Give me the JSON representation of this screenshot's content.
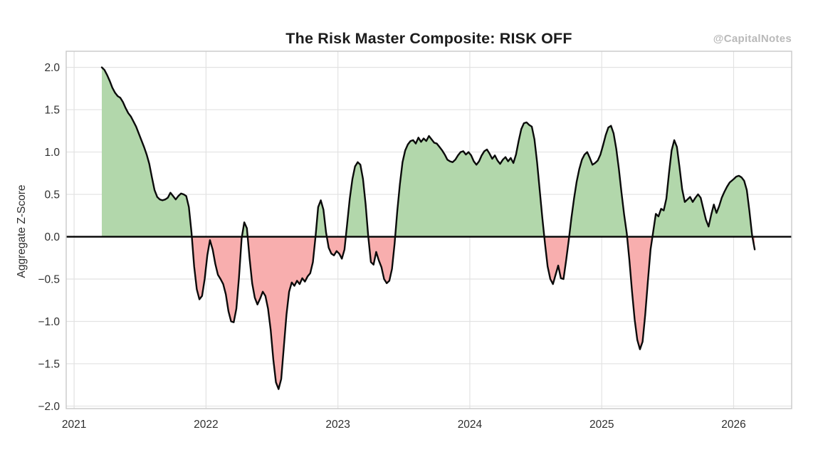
{
  "header": {
    "watermark": "@CapitalNotes"
  },
  "chart_data": {
    "type": "area",
    "title": "The Risk Master Composite: RISK OFF",
    "xlabel": "",
    "ylabel": "Aggregate Z-Score",
    "x_unit": "year",
    "xlim": [
      2020.94,
      2026.44
    ],
    "ylim": [
      -2.03,
      2.19
    ],
    "grid": true,
    "legend": null,
    "zero_line": true,
    "fill_rule": "green fill above zero, red fill below zero",
    "x_ticks": [
      {
        "v": 2021,
        "label": "2021"
      },
      {
        "v": 2022,
        "label": "2022"
      },
      {
        "v": 2023,
        "label": "2023"
      },
      {
        "v": 2024,
        "label": "2024"
      },
      {
        "v": 2025,
        "label": "2025"
      },
      {
        "v": 2026,
        "label": "2026"
      }
    ],
    "y_ticks": [
      {
        "v": 2.0,
        "label": "2.0"
      },
      {
        "v": 1.5,
        "label": "1.5"
      },
      {
        "v": 1.0,
        "label": "1.0"
      },
      {
        "v": 0.5,
        "label": "0.5"
      },
      {
        "v": 0.0,
        "label": "0.0"
      },
      {
        "v": -0.5,
        "label": "−0.5"
      },
      {
        "v": -1.0,
        "label": "−1.0"
      },
      {
        "v": -1.5,
        "label": "−1.5"
      },
      {
        "v": -2.0,
        "label": "−2.0"
      }
    ],
    "colors": {
      "positive_fill": "#b2d7ab",
      "negative_fill": "#f8aeae",
      "line": "#0a0a0a",
      "zero_line": "#000000",
      "grid": "#e2e2e2",
      "border": "#c9c9c9",
      "tick_text": "#2e2e2e",
      "title_text": "#1c1c1c",
      "watermark_text": "#b9b9b9"
    },
    "series": [
      {
        "name": "aggregate_z_score",
        "points": [
          [
            2021.21,
            2.0
          ],
          [
            2021.23,
            1.97
          ],
          [
            2021.25,
            1.91
          ],
          [
            2021.27,
            1.84
          ],
          [
            2021.29,
            1.76
          ],
          [
            2021.31,
            1.7
          ],
          [
            2021.33,
            1.66
          ],
          [
            2021.35,
            1.64
          ],
          [
            2021.37,
            1.59
          ],
          [
            2021.39,
            1.52
          ],
          [
            2021.41,
            1.46
          ],
          [
            2021.43,
            1.42
          ],
          [
            2021.45,
            1.36
          ],
          [
            2021.47,
            1.3
          ],
          [
            2021.49,
            1.22
          ],
          [
            2021.51,
            1.14
          ],
          [
            2021.53,
            1.06
          ],
          [
            2021.55,
            0.97
          ],
          [
            2021.57,
            0.86
          ],
          [
            2021.59,
            0.7
          ],
          [
            2021.61,
            0.55
          ],
          [
            2021.63,
            0.47
          ],
          [
            2021.65,
            0.44
          ],
          [
            2021.67,
            0.43
          ],
          [
            2021.69,
            0.44
          ],
          [
            2021.71,
            0.46
          ],
          [
            2021.73,
            0.52
          ],
          [
            2021.75,
            0.48
          ],
          [
            2021.77,
            0.44
          ],
          [
            2021.79,
            0.48
          ],
          [
            2021.81,
            0.51
          ],
          [
            2021.83,
            0.5
          ],
          [
            2021.85,
            0.48
          ],
          [
            2021.87,
            0.35
          ],
          [
            2021.89,
            0.05
          ],
          [
            2021.91,
            -0.35
          ],
          [
            2021.93,
            -0.62
          ],
          [
            2021.95,
            -0.74
          ],
          [
            2021.97,
            -0.7
          ],
          [
            2021.99,
            -0.5
          ],
          [
            2022.01,
            -0.22
          ],
          [
            2022.03,
            -0.04
          ],
          [
            2022.05,
            -0.15
          ],
          [
            2022.07,
            -0.32
          ],
          [
            2022.09,
            -0.45
          ],
          [
            2022.11,
            -0.5
          ],
          [
            2022.13,
            -0.56
          ],
          [
            2022.15,
            -0.68
          ],
          [
            2022.17,
            -0.88
          ],
          [
            2022.19,
            -1.0
          ],
          [
            2022.21,
            -1.01
          ],
          [
            2022.23,
            -0.85
          ],
          [
            2022.25,
            -0.48
          ],
          [
            2022.27,
            -0.02
          ],
          [
            2022.29,
            0.17
          ],
          [
            2022.31,
            0.1
          ],
          [
            2022.33,
            -0.25
          ],
          [
            2022.35,
            -0.55
          ],
          [
            2022.37,
            -0.72
          ],
          [
            2022.39,
            -0.8
          ],
          [
            2022.41,
            -0.73
          ],
          [
            2022.43,
            -0.65
          ],
          [
            2022.45,
            -0.7
          ],
          [
            2022.47,
            -0.85
          ],
          [
            2022.49,
            -1.1
          ],
          [
            2022.51,
            -1.45
          ],
          [
            2022.53,
            -1.72
          ],
          [
            2022.55,
            -1.8
          ],
          [
            2022.57,
            -1.68
          ],
          [
            2022.59,
            -1.3
          ],
          [
            2022.61,
            -0.92
          ],
          [
            2022.63,
            -0.65
          ],
          [
            2022.65,
            -0.54
          ],
          [
            2022.67,
            -0.58
          ],
          [
            2022.69,
            -0.52
          ],
          [
            2022.71,
            -0.56
          ],
          [
            2022.73,
            -0.49
          ],
          [
            2022.75,
            -0.53
          ],
          [
            2022.77,
            -0.47
          ],
          [
            2022.79,
            -0.43
          ],
          [
            2022.81,
            -0.3
          ],
          [
            2022.83,
            0.0
          ],
          [
            2022.85,
            0.35
          ],
          [
            2022.87,
            0.43
          ],
          [
            2022.89,
            0.32
          ],
          [
            2022.91,
            0.05
          ],
          [
            2022.93,
            -0.13
          ],
          [
            2022.95,
            -0.2
          ],
          [
            2022.97,
            -0.22
          ],
          [
            2022.99,
            -0.17
          ],
          [
            2023.01,
            -0.2
          ],
          [
            2023.03,
            -0.26
          ],
          [
            2023.05,
            -0.15
          ],
          [
            2023.07,
            0.15
          ],
          [
            2023.09,
            0.45
          ],
          [
            2023.11,
            0.68
          ],
          [
            2023.13,
            0.83
          ],
          [
            2023.15,
            0.88
          ],
          [
            2023.17,
            0.85
          ],
          [
            2023.19,
            0.68
          ],
          [
            2023.21,
            0.38
          ],
          [
            2023.23,
            0.0
          ],
          [
            2023.25,
            -0.3
          ],
          [
            2023.27,
            -0.33
          ],
          [
            2023.29,
            -0.18
          ],
          [
            2023.31,
            -0.28
          ],
          [
            2023.33,
            -0.36
          ],
          [
            2023.35,
            -0.5
          ],
          [
            2023.37,
            -0.55
          ],
          [
            2023.39,
            -0.52
          ],
          [
            2023.41,
            -0.38
          ],
          [
            2023.43,
            -0.08
          ],
          [
            2023.45,
            0.3
          ],
          [
            2023.47,
            0.62
          ],
          [
            2023.49,
            0.88
          ],
          [
            2023.51,
            1.02
          ],
          [
            2023.53,
            1.09
          ],
          [
            2023.55,
            1.13
          ],
          [
            2023.57,
            1.14
          ],
          [
            2023.59,
            1.1
          ],
          [
            2023.61,
            1.17
          ],
          [
            2023.63,
            1.12
          ],
          [
            2023.65,
            1.16
          ],
          [
            2023.67,
            1.13
          ],
          [
            2023.69,
            1.19
          ],
          [
            2023.71,
            1.15
          ],
          [
            2023.73,
            1.11
          ],
          [
            2023.75,
            1.1
          ],
          [
            2023.77,
            1.06
          ],
          [
            2023.79,
            1.02
          ],
          [
            2023.81,
            0.97
          ],
          [
            2023.83,
            0.91
          ],
          [
            2023.85,
            0.89
          ],
          [
            2023.87,
            0.88
          ],
          [
            2023.89,
            0.91
          ],
          [
            2023.91,
            0.96
          ],
          [
            2023.93,
            1.0
          ],
          [
            2023.95,
            1.01
          ],
          [
            2023.97,
            0.97
          ],
          [
            2023.99,
            1.0
          ],
          [
            2024.01,
            0.96
          ],
          [
            2024.03,
            0.89
          ],
          [
            2024.05,
            0.85
          ],
          [
            2024.07,
            0.89
          ],
          [
            2024.09,
            0.96
          ],
          [
            2024.11,
            1.01
          ],
          [
            2024.13,
            1.03
          ],
          [
            2024.15,
            0.98
          ],
          [
            2024.17,
            0.92
          ],
          [
            2024.19,
            0.96
          ],
          [
            2024.21,
            0.9
          ],
          [
            2024.23,
            0.86
          ],
          [
            2024.25,
            0.91
          ],
          [
            2024.27,
            0.94
          ],
          [
            2024.29,
            0.89
          ],
          [
            2024.31,
            0.93
          ],
          [
            2024.33,
            0.87
          ],
          [
            2024.35,
            0.97
          ],
          [
            2024.37,
            1.13
          ],
          [
            2024.39,
            1.27
          ],
          [
            2024.41,
            1.34
          ],
          [
            2024.43,
            1.35
          ],
          [
            2024.45,
            1.32
          ],
          [
            2024.47,
            1.3
          ],
          [
            2024.49,
            1.15
          ],
          [
            2024.51,
            0.88
          ],
          [
            2024.53,
            0.55
          ],
          [
            2024.55,
            0.22
          ],
          [
            2024.57,
            -0.08
          ],
          [
            2024.59,
            -0.35
          ],
          [
            2024.61,
            -0.5
          ],
          [
            2024.63,
            -0.56
          ],
          [
            2024.65,
            -0.45
          ],
          [
            2024.67,
            -0.34
          ],
          [
            2024.69,
            -0.49
          ],
          [
            2024.71,
            -0.5
          ],
          [
            2024.73,
            -0.28
          ],
          [
            2024.75,
            -0.04
          ],
          [
            2024.77,
            0.22
          ],
          [
            2024.79,
            0.45
          ],
          [
            2024.81,
            0.65
          ],
          [
            2024.83,
            0.8
          ],
          [
            2024.85,
            0.91
          ],
          [
            2024.87,
            0.97
          ],
          [
            2024.89,
            1.0
          ],
          [
            2024.91,
            0.93
          ],
          [
            2024.93,
            0.85
          ],
          [
            2024.95,
            0.87
          ],
          [
            2024.97,
            0.9
          ],
          [
            2024.99,
            0.97
          ],
          [
            2025.01,
            1.08
          ],
          [
            2025.03,
            1.2
          ],
          [
            2025.05,
            1.29
          ],
          [
            2025.07,
            1.31
          ],
          [
            2025.09,
            1.22
          ],
          [
            2025.11,
            1.04
          ],
          [
            2025.13,
            0.8
          ],
          [
            2025.15,
            0.52
          ],
          [
            2025.17,
            0.26
          ],
          [
            2025.19,
            0.04
          ],
          [
            2025.21,
            -0.28
          ],
          [
            2025.23,
            -0.65
          ],
          [
            2025.25,
            -0.98
          ],
          [
            2025.27,
            -1.22
          ],
          [
            2025.29,
            -1.33
          ],
          [
            2025.31,
            -1.24
          ],
          [
            2025.33,
            -0.92
          ],
          [
            2025.35,
            -0.52
          ],
          [
            2025.37,
            -0.15
          ],
          [
            2025.39,
            0.06
          ],
          [
            2025.41,
            0.27
          ],
          [
            2025.43,
            0.24
          ],
          [
            2025.45,
            0.33
          ],
          [
            2025.47,
            0.31
          ],
          [
            2025.49,
            0.45
          ],
          [
            2025.51,
            0.75
          ],
          [
            2025.53,
            1.02
          ],
          [
            2025.55,
            1.14
          ],
          [
            2025.57,
            1.06
          ],
          [
            2025.59,
            0.82
          ],
          [
            2025.61,
            0.56
          ],
          [
            2025.63,
            0.41
          ],
          [
            2025.65,
            0.44
          ],
          [
            2025.67,
            0.47
          ],
          [
            2025.69,
            0.41
          ],
          [
            2025.71,
            0.46
          ],
          [
            2025.73,
            0.5
          ],
          [
            2025.75,
            0.46
          ],
          [
            2025.77,
            0.33
          ],
          [
            2025.79,
            0.2
          ],
          [
            2025.81,
            0.12
          ],
          [
            2025.83,
            0.26
          ],
          [
            2025.85,
            0.38
          ],
          [
            2025.87,
            0.28
          ],
          [
            2025.89,
            0.36
          ],
          [
            2025.91,
            0.46
          ],
          [
            2025.93,
            0.53
          ],
          [
            2025.95,
            0.59
          ],
          [
            2025.97,
            0.64
          ],
          [
            2026.0,
            0.68
          ],
          [
            2026.02,
            0.71
          ],
          [
            2026.04,
            0.72
          ],
          [
            2026.06,
            0.7
          ],
          [
            2026.08,
            0.66
          ],
          [
            2026.1,
            0.55
          ],
          [
            2026.12,
            0.3
          ],
          [
            2026.14,
            0.02
          ],
          [
            2026.16,
            -0.15
          ]
        ]
      }
    ]
  }
}
